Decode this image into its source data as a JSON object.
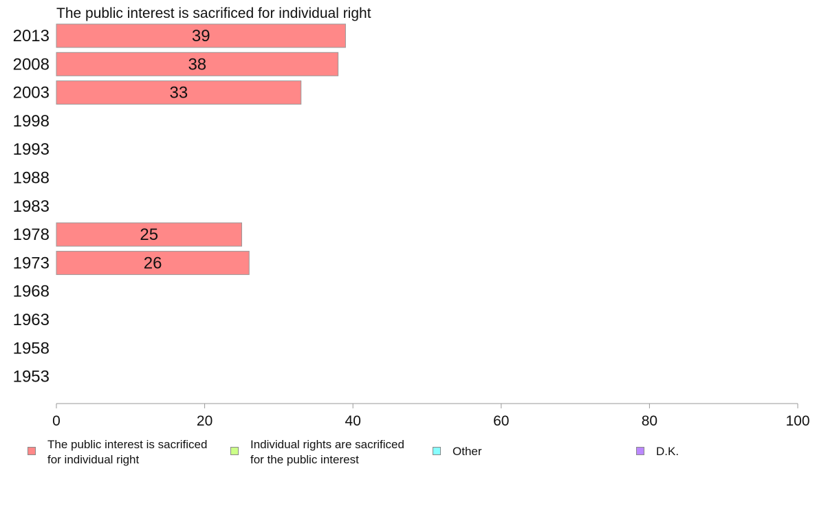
{
  "chart_data": {
    "type": "bar",
    "orientation": "horizontal",
    "title": "The public interest is sacrificed for individual right",
    "categories": [
      "2013",
      "2008",
      "2003",
      "1998",
      "1993",
      "1988",
      "1983",
      "1978",
      "1973",
      "1968",
      "1963",
      "1958",
      "1953"
    ],
    "series": [
      {
        "name": "The public interest is sacrificed for individual right",
        "color": "#ff8888",
        "values": [
          39,
          38,
          33,
          null,
          null,
          null,
          null,
          25,
          26,
          null,
          null,
          null,
          null
        ]
      }
    ],
    "xlim": [
      0,
      100
    ],
    "xticks": [
      "0",
      "20",
      "40",
      "60",
      "80",
      "100"
    ],
    "grid": false,
    "legend_position": "bottom",
    "legend": [
      {
        "label": "The public interest is sacrificed\nfor individual right",
        "color": "#ff8888"
      },
      {
        "label": "Individual rights are sacrificed\nfor the public interest",
        "color": "#ccff88"
      },
      {
        "label": "Other",
        "color": "#88ffff"
      },
      {
        "label": "D.K.",
        "color": "#bb88ff"
      }
    ]
  }
}
